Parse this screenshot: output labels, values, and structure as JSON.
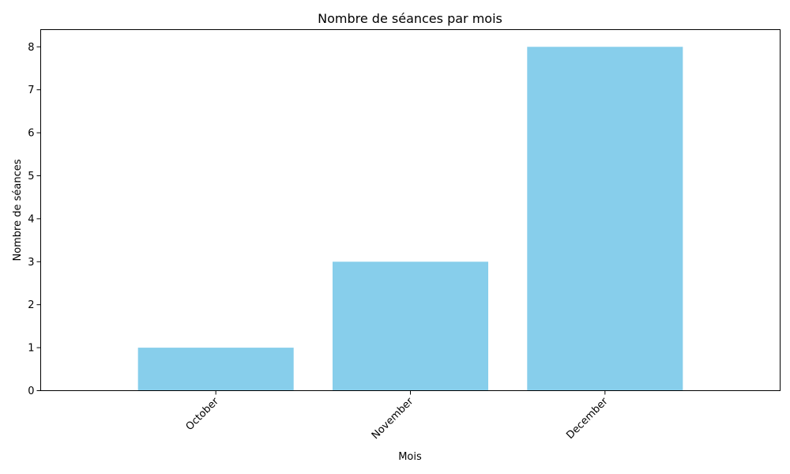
{
  "chart_data": {
    "type": "bar",
    "title": "Nombre de séances par mois",
    "xlabel": "Mois",
    "ylabel": "Nombre de séances",
    "categories": [
      "October",
      "November",
      "December"
    ],
    "values": [
      1,
      3,
      8
    ],
    "ylim": [
      0,
      8.4
    ],
    "yticks": [
      0,
      1,
      2,
      3,
      4,
      5,
      6,
      7,
      8
    ],
    "bar_color": "#87CEEB",
    "grid": false,
    "legend": "none"
  }
}
